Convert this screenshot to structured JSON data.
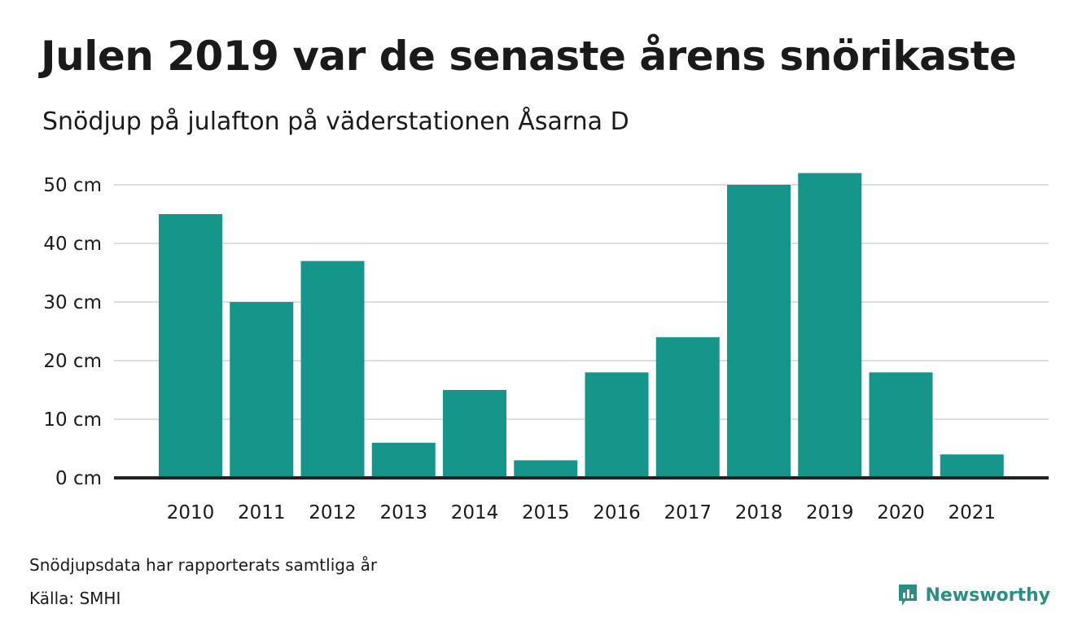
{
  "header": {
    "title": "Julen 2019 var de senaste årens snörikaste",
    "subtitle": "Snödjup på julafton på väderstationen Åsarna D"
  },
  "footer": {
    "note": "Snödjupsdata har rapporterats samtliga år",
    "source": "Källa: SMHI",
    "brand": "Newsworthy",
    "brand_icon": "newsworthy-logo-icon"
  },
  "colors": {
    "bar": "#16968a",
    "grid": "#dddddd",
    "baseline": "#222222",
    "brand": "#2a8f83"
  },
  "chart_data": {
    "type": "bar",
    "title": "Julen 2019 var de senaste årens snörikaste",
    "subtitle": "Snödjup på julafton på väderstationen Åsarna D",
    "categories": [
      "2010",
      "2011",
      "2012",
      "2013",
      "2014",
      "2015",
      "2016",
      "2017",
      "2018",
      "2019",
      "2020",
      "2021"
    ],
    "values": [
      45,
      30,
      37,
      6,
      15,
      3,
      18,
      24,
      50,
      52,
      18,
      4
    ],
    "y_ticks": [
      0,
      10,
      20,
      30,
      40,
      50
    ],
    "y_tick_labels": [
      "0 cm",
      "10 cm",
      "20 cm",
      "30 cm",
      "40 cm",
      "50 cm"
    ],
    "ylim": [
      0,
      52
    ],
    "unit": "cm",
    "grid": true
  }
}
